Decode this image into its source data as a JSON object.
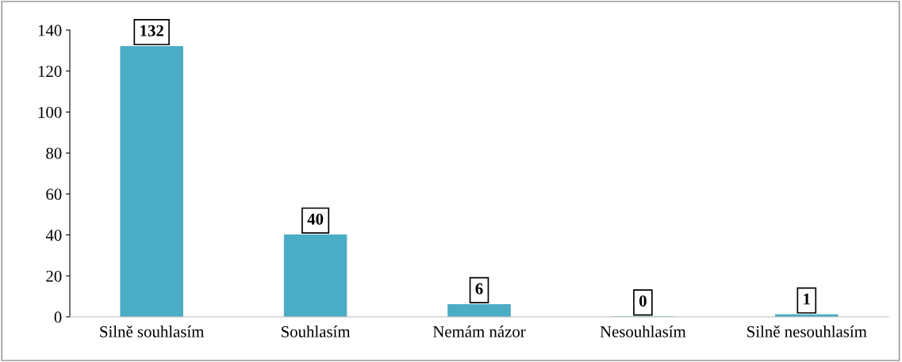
{
  "chart_data": {
    "type": "bar",
    "categories": [
      "Silně souhlasím",
      "Souhlasím",
      "Nemám názor",
      "Nesouhlasím",
      "Silně nesouhlasím"
    ],
    "values": [
      132,
      40,
      6,
      0,
      1
    ],
    "color": "#4bacc6",
    "ylim": [
      0,
      140
    ],
    "yticks": [
      0,
      20,
      40,
      60,
      80,
      100,
      120,
      140
    ],
    "grid": false,
    "data_labels": true
  }
}
